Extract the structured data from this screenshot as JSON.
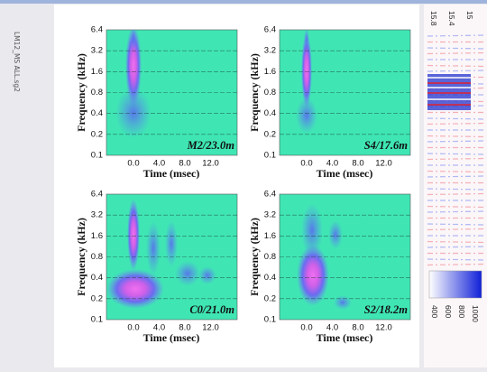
{
  "side_label": "LM12_MS ALL.sg2",
  "panels": [
    {
      "annotation": "M2/23.0m",
      "ylabel": "Frequency (kHz)",
      "xlabel": "Time (msec)",
      "yticks": [
        "6.4",
        "3.2",
        "1.6",
        "0.8",
        "0.4",
        "0.2",
        "0.1"
      ],
      "xticks": [
        "0.0",
        "4.0",
        "8.0",
        "12.0"
      ]
    },
    {
      "annotation": "S4/17.6m",
      "ylabel": "Frequency (kHz)",
      "xlabel": "Time (msec)",
      "yticks": [
        "6.4",
        "3.2",
        "1.6",
        "0.8",
        "0.4",
        "0.2",
        "0.1"
      ],
      "xticks": [
        "0.0",
        "4.0",
        "8.0",
        "12.0"
      ]
    },
    {
      "annotation": "C0/21.0m",
      "ylabel": "Frequency (kHz)",
      "xlabel": "Time (msec)",
      "yticks": [
        "6.4",
        "3.2",
        "1.6",
        "0.8",
        "0.4",
        "0.2",
        "0.1"
      ],
      "xticks": [
        "0.0",
        "4.0",
        "8.0",
        "12.0"
      ]
    },
    {
      "annotation": "S2/18.2m",
      "ylabel": "Frequency (kHz)",
      "xlabel": "Time (msec)",
      "yticks": [
        "6.4",
        "3.2",
        "1.6",
        "0.8",
        "0.4",
        "0.2",
        "0.1"
      ],
      "xticks": [
        "0.0",
        "4.0",
        "8.0",
        "12.0"
      ]
    }
  ],
  "strip": {
    "top_labels": [
      "15.8",
      "15.4",
      "15"
    ],
    "colorbar_labels": [
      "400",
      "600",
      "800",
      "1000"
    ]
  }
}
